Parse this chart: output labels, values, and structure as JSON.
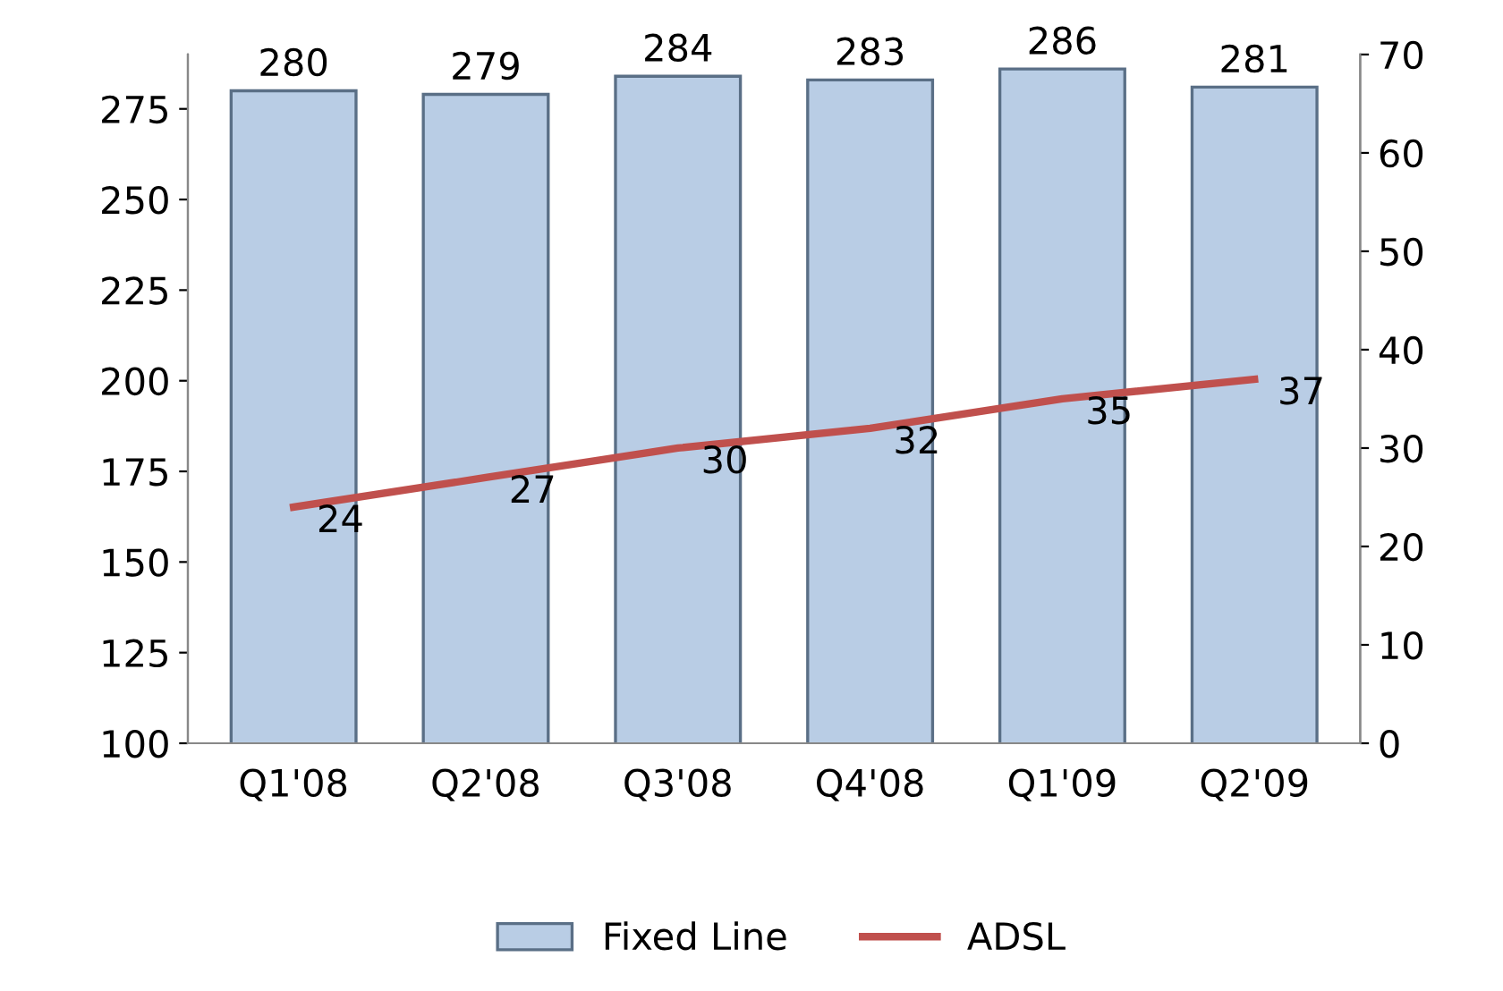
{
  "chart_data": {
    "type": "bar",
    "categories": [
      "Q1'08",
      "Q2'08",
      "Q3'08",
      "Q4'08",
      "Q1'09",
      "Q2'09"
    ],
    "series": [
      {
        "name": "Fixed Line",
        "color": "#b9cde5",
        "values": [
          280,
          279,
          284,
          283,
          286,
          281
        ]
      },
      {
        "name": "ADSL",
        "type": "line",
        "axis": "y2",
        "color": "#c0504d",
        "values": [
          24,
          27,
          30,
          32,
          35,
          37
        ]
      }
    ],
    "ylim": [
      100,
      290
    ],
    "yticks": [
      100,
      125,
      150,
      175,
      200,
      225,
      250,
      275
    ],
    "y2lim": [
      0,
      70
    ],
    "y2ticks": [
      0,
      10,
      20,
      30,
      40,
      50,
      60,
      70
    ],
    "data_labels": true,
    "grid": false,
    "legend": "bottom",
    "marker": "none",
    "line_style": "solid"
  }
}
